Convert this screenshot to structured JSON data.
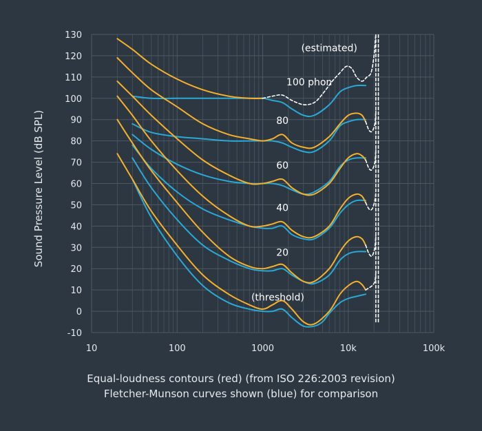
{
  "chart_data": {
    "type": "line",
    "title": "",
    "xlabel": "",
    "ylabel": "Sound Pressure Level (dB SPL)",
    "x_scale": "log",
    "xlim": [
      10,
      100000
    ],
    "ylim": [
      -10,
      130
    ],
    "x_ticks": [
      {
        "value": 10,
        "label": "10"
      },
      {
        "value": 100,
        "label": "100"
      },
      {
        "value": 1000,
        "label": "1000"
      },
      {
        "value": 10000,
        "label": "10k"
      },
      {
        "value": 100000,
        "label": "100k"
      }
    ],
    "y_ticks": [
      -10,
      0,
      10,
      20,
      30,
      40,
      50,
      60,
      70,
      80,
      90,
      100,
      110,
      120,
      130
    ],
    "grid": true,
    "colors": {
      "iso": "#f5b12b",
      "fletcher": "#29a9d6",
      "estimated": "#ffffff",
      "grid": "#4d5863",
      "background": "#2d3742"
    },
    "series": [
      {
        "group": "iso",
        "points": [
          [
            20,
            74
          ],
          [
            30,
            62
          ],
          [
            50,
            47
          ],
          [
            100,
            31
          ],
          [
            200,
            17
          ],
          [
            400,
            8
          ],
          [
            700,
            3
          ],
          [
            1000,
            1
          ],
          [
            1300,
            3
          ],
          [
            1700,
            5
          ],
          [
            2200,
            1
          ],
          [
            3000,
            -5
          ],
          [
            4000,
            -6
          ],
          [
            6000,
            0
          ],
          [
            8000,
            8
          ],
          [
            10000,
            12
          ],
          [
            12500,
            14
          ],
          [
            14500,
            12.5
          ],
          [
            16000,
            10
          ]
        ]
      },
      {
        "group": "iso",
        "points": [
          [
            20,
            90
          ],
          [
            30,
            79
          ],
          [
            50,
            66
          ],
          [
            100,
            51
          ],
          [
            200,
            37
          ],
          [
            400,
            26
          ],
          [
            700,
            21
          ],
          [
            1000,
            20
          ],
          [
            1300,
            21
          ],
          [
            1700,
            22
          ],
          [
            2200,
            18
          ],
          [
            3000,
            14
          ],
          [
            4000,
            14
          ],
          [
            6000,
            20
          ],
          [
            8000,
            28
          ],
          [
            10000,
            33
          ],
          [
            12500,
            35
          ],
          [
            14500,
            34
          ],
          [
            16000,
            31
          ]
        ]
      },
      {
        "group": "iso",
        "points": [
          [
            20,
            101
          ],
          [
            30,
            92
          ],
          [
            50,
            80
          ],
          [
            100,
            66
          ],
          [
            200,
            54
          ],
          [
            400,
            45
          ],
          [
            700,
            40
          ],
          [
            1000,
            40
          ],
          [
            1300,
            41
          ],
          [
            1700,
            42
          ],
          [
            2200,
            38
          ],
          [
            3000,
            35
          ],
          [
            4000,
            35
          ],
          [
            6000,
            40
          ],
          [
            8000,
            48
          ],
          [
            10000,
            53
          ],
          [
            12500,
            55
          ],
          [
            14500,
            54
          ],
          [
            16000,
            51
          ]
        ]
      },
      {
        "group": "iso",
        "points": [
          [
            20,
            108
          ],
          [
            30,
            101
          ],
          [
            50,
            92
          ],
          [
            100,
            81
          ],
          [
            200,
            71
          ],
          [
            400,
            64
          ],
          [
            700,
            60
          ],
          [
            1000,
            60
          ],
          [
            1300,
            61
          ],
          [
            1700,
            62
          ],
          [
            2200,
            58
          ],
          [
            3000,
            55
          ],
          [
            4000,
            55
          ],
          [
            6000,
            60
          ],
          [
            8000,
            67
          ],
          [
            10000,
            72
          ],
          [
            12500,
            74
          ],
          [
            14500,
            73
          ],
          [
            16000,
            71
          ]
        ]
      },
      {
        "group": "iso",
        "points": [
          [
            20,
            119
          ],
          [
            30,
            112
          ],
          [
            50,
            104
          ],
          [
            100,
            96
          ],
          [
            200,
            88
          ],
          [
            400,
            83
          ],
          [
            700,
            81
          ],
          [
            1000,
            80
          ],
          [
            1300,
            81
          ],
          [
            1700,
            83
          ],
          [
            2200,
            79
          ],
          [
            3000,
            77
          ],
          [
            4000,
            77
          ],
          [
            6000,
            82
          ],
          [
            8000,
            88
          ],
          [
            10000,
            92
          ],
          [
            12500,
            93
          ],
          [
            14500,
            92
          ],
          [
            16000,
            89
          ]
        ]
      },
      {
        "group": "iso",
        "points": [
          [
            20,
            128
          ],
          [
            30,
            123
          ],
          [
            50,
            116
          ],
          [
            100,
            109
          ],
          [
            200,
            104
          ],
          [
            400,
            101
          ],
          [
            700,
            100
          ],
          [
            1000,
            100
          ]
        ]
      },
      {
        "group": "fletcher",
        "points": [
          [
            30,
            62
          ],
          [
            50,
            44
          ],
          [
            100,
            26
          ],
          [
            200,
            12
          ],
          [
            400,
            4
          ],
          [
            700,
            1
          ],
          [
            1000,
            0
          ],
          [
            1300,
            0
          ],
          [
            1700,
            1
          ],
          [
            2200,
            -3
          ],
          [
            3000,
            -7
          ],
          [
            4000,
            -7
          ],
          [
            5000,
            -5
          ],
          [
            6000,
            -1
          ],
          [
            8000,
            4
          ],
          [
            10000,
            6
          ],
          [
            12500,
            7
          ],
          [
            16000,
            8
          ]
        ]
      },
      {
        "group": "fletcher",
        "points": [
          [
            30,
            72
          ],
          [
            50,
            58
          ],
          [
            100,
            43
          ],
          [
            200,
            31
          ],
          [
            400,
            24
          ],
          [
            700,
            20
          ],
          [
            1000,
            19
          ],
          [
            1300,
            19
          ],
          [
            1700,
            20
          ],
          [
            2200,
            17
          ],
          [
            3000,
            14
          ],
          [
            4000,
            13
          ],
          [
            6000,
            17
          ],
          [
            8000,
            24
          ],
          [
            10000,
            27
          ],
          [
            12500,
            28
          ],
          [
            16000,
            28
          ]
        ]
      },
      {
        "group": "fletcher",
        "points": [
          [
            30,
            78
          ],
          [
            50,
            67
          ],
          [
            100,
            56
          ],
          [
            200,
            48
          ],
          [
            400,
            43
          ],
          [
            700,
            40
          ],
          [
            1000,
            39
          ],
          [
            1300,
            39
          ],
          [
            1700,
            40
          ],
          [
            2200,
            36
          ],
          [
            3000,
            34
          ],
          [
            4000,
            34
          ],
          [
            6000,
            39
          ],
          [
            8000,
            46
          ],
          [
            10000,
            50
          ],
          [
            12500,
            52
          ],
          [
            16000,
            52
          ]
        ]
      },
      {
        "group": "fletcher",
        "points": [
          [
            30,
            83
          ],
          [
            50,
            76
          ],
          [
            100,
            69
          ],
          [
            200,
            64
          ],
          [
            400,
            61
          ],
          [
            700,
            60
          ],
          [
            1000,
            60
          ],
          [
            1300,
            60
          ],
          [
            1700,
            59
          ],
          [
            2200,
            57
          ],
          [
            3000,
            55
          ],
          [
            4000,
            56
          ],
          [
            6000,
            61
          ],
          [
            8000,
            68
          ],
          [
            10000,
            71
          ],
          [
            12500,
            72
          ],
          [
            16000,
            72
          ]
        ]
      },
      {
        "group": "fletcher",
        "points": [
          [
            30,
            88
          ],
          [
            50,
            84
          ],
          [
            100,
            82
          ],
          [
            200,
            81
          ],
          [
            400,
            80
          ],
          [
            700,
            80
          ],
          [
            1000,
            80
          ],
          [
            1300,
            80
          ],
          [
            1700,
            79
          ],
          [
            2200,
            77
          ],
          [
            3000,
            75
          ],
          [
            4000,
            75
          ],
          [
            6000,
            80
          ],
          [
            8000,
            87
          ],
          [
            10000,
            89
          ],
          [
            12500,
            90
          ],
          [
            16000,
            90
          ]
        ]
      },
      {
        "group": "fletcher",
        "points": [
          [
            30,
            101
          ],
          [
            50,
            100
          ],
          [
            100,
            100
          ],
          [
            200,
            100
          ],
          [
            400,
            100
          ],
          [
            700,
            100
          ],
          [
            1000,
            100
          ],
          [
            1300,
            99
          ],
          [
            1700,
            98
          ],
          [
            2200,
            95
          ],
          [
            3000,
            92
          ],
          [
            4000,
            92
          ],
          [
            6000,
            97
          ],
          [
            8000,
            103
          ],
          [
            10000,
            105
          ],
          [
            12500,
            106
          ],
          [
            16000,
            106
          ]
        ]
      },
      {
        "group": "estimated",
        "points": [
          [
            1000,
            100
          ],
          [
            1300,
            101
          ],
          [
            1700,
            101.5
          ],
          [
            2200,
            99
          ],
          [
            3000,
            97
          ],
          [
            4000,
            98
          ],
          [
            5000,
            102
          ],
          [
            6500,
            108
          ],
          [
            8000,
            112
          ],
          [
            9500,
            115
          ],
          [
            11000,
            114
          ],
          [
            12500,
            110
          ],
          [
            14500,
            108
          ],
          [
            16500,
            110
          ],
          [
            18500,
            112
          ],
          [
            20000,
            120
          ],
          [
            21000,
            130
          ]
        ]
      },
      {
        "group": "estimated",
        "points": [
          [
            16000,
            89
          ],
          [
            17500,
            85
          ],
          [
            19000,
            84.5
          ],
          [
            20500,
            88
          ],
          [
            21000,
            94
          ]
        ]
      },
      {
        "group": "estimated",
        "points": [
          [
            16000,
            71
          ],
          [
            17500,
            67
          ],
          [
            19000,
            66.5
          ],
          [
            20500,
            70
          ],
          [
            21000,
            76
          ]
        ]
      },
      {
        "group": "estimated",
        "points": [
          [
            16000,
            51
          ],
          [
            17500,
            48
          ],
          [
            19000,
            48
          ],
          [
            20500,
            52
          ],
          [
            21000,
            56
          ]
        ]
      },
      {
        "group": "estimated",
        "points": [
          [
            16000,
            31
          ],
          [
            17500,
            27
          ],
          [
            19000,
            26
          ],
          [
            20500,
            30
          ],
          [
            21000,
            36
          ]
        ]
      },
      {
        "group": "estimated",
        "points": [
          [
            16000,
            10
          ],
          [
            17500,
            11
          ],
          [
            19000,
            12
          ],
          [
            20500,
            14
          ],
          [
            21000,
            18
          ]
        ]
      },
      {
        "group": "estimated",
        "points": [
          [
            21000,
            -5
          ],
          [
            21000,
            130
          ]
        ]
      },
      {
        "group": "estimated",
        "points": [
          [
            22500,
            -5
          ],
          [
            22500,
            130
          ]
        ]
      }
    ],
    "annotations": [
      {
        "text": "(estimated)",
        "x": 6000,
        "y": 122
      },
      {
        "text": "100 phon",
        "x": 3500,
        "y": 106
      },
      {
        "text": "80",
        "x": 1700,
        "y": 88
      },
      {
        "text": "60",
        "x": 1700,
        "y": 67
      },
      {
        "text": "40",
        "x": 1700,
        "y": 47
      },
      {
        "text": "20",
        "x": 1700,
        "y": 26
      },
      {
        "text": "(threshold)",
        "x": 1500,
        "y": 5
      }
    ]
  },
  "caption": {
    "line1": "Equal-loudness contours (red) (from ISO 226:2003 revision)",
    "line2": "Fletcher-Munson curves shown (blue) for comparison"
  }
}
